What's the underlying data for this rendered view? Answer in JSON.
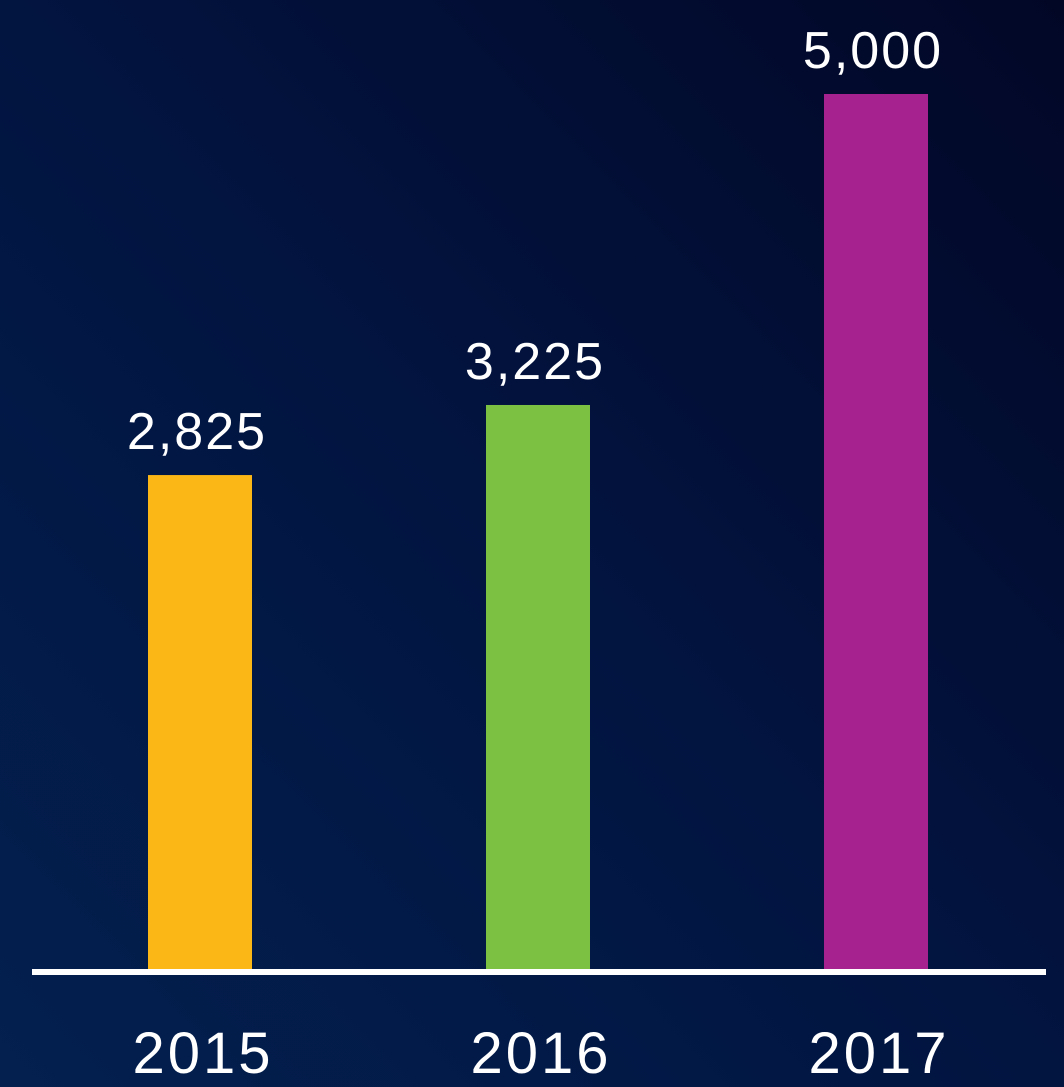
{
  "chart_data": {
    "type": "bar",
    "categories": [
      "2015",
      "2016",
      "2017"
    ],
    "values": [
      2825,
      3225,
      5000
    ],
    "value_labels": [
      "2,825",
      "3,225",
      "5,000"
    ],
    "colors": [
      "#fbb715",
      "#7dc142",
      "#a6228e"
    ]
  }
}
